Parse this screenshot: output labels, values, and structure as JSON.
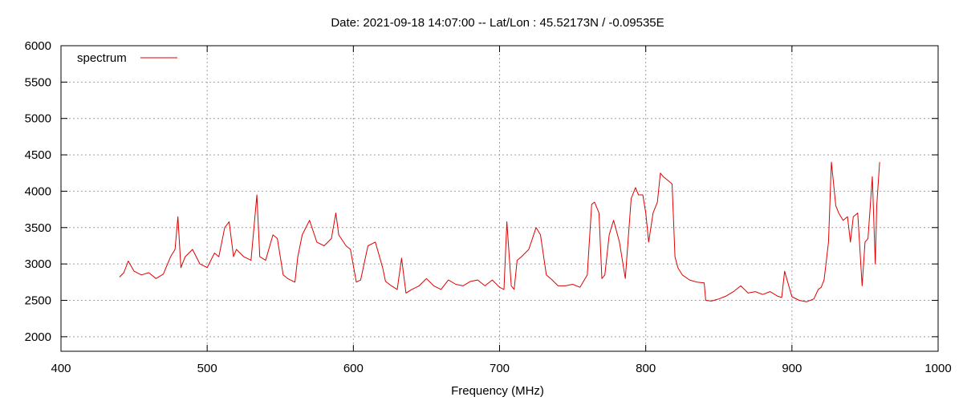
{
  "chart_data": {
    "type": "line",
    "title": "Date: 2021-09-18 14:07:00  --  Lat/Lon : 45.52173N / -0.09535E",
    "xlabel": "Frequency (MHz)",
    "ylabel": "",
    "xlim": [
      400,
      1000
    ],
    "ylim": [
      1800,
      6000
    ],
    "xticks": [
      400,
      500,
      600,
      700,
      800,
      900,
      1000
    ],
    "yticks": [
      2000,
      2500,
      3000,
      3500,
      4000,
      4500,
      5000,
      5500,
      6000
    ],
    "grid": true,
    "legend_position": "top-left",
    "colors": {
      "spectrum": "#e00000"
    },
    "series": [
      {
        "name": "spectrum",
        "x": [
          440,
          443,
          446,
          450,
          455,
          460,
          465,
          470,
          475,
          478,
          480,
          482,
          485,
          490,
          495,
          500,
          505,
          508,
          512,
          515,
          518,
          520,
          525,
          530,
          534,
          536,
          540,
          545,
          548,
          552,
          555,
          560,
          562,
          565,
          570,
          575,
          580,
          585,
          588,
          590,
          595,
          598,
          602,
          605,
          610,
          615,
          620,
          622,
          626,
          630,
          633,
          636,
          640,
          645,
          650,
          655,
          660,
          665,
          670,
          675,
          680,
          685,
          690,
          695,
          700,
          703,
          705,
          708,
          710,
          712,
          715,
          720,
          725,
          728,
          732,
          736,
          740,
          745,
          750,
          755,
          760,
          763,
          765,
          768,
          770,
          772,
          775,
          778,
          782,
          786,
          790,
          793,
          795,
          798,
          800,
          802,
          805,
          808,
          810,
          812,
          815,
          818,
          820,
          822,
          825,
          830,
          835,
          840,
          841,
          845,
          850,
          855,
          860,
          865,
          870,
          875,
          880,
          885,
          890,
          893,
          895,
          900,
          905,
          910,
          915,
          918,
          920,
          922,
          925,
          927,
          930,
          932,
          935,
          938,
          940,
          942,
          945,
          948,
          950,
          952,
          955,
          957,
          958,
          960
        ],
        "values": [
          2820,
          2880,
          3040,
          2900,
          2850,
          2880,
          2800,
          2860,
          3100,
          3200,
          3650,
          2950,
          3100,
          3200,
          3000,
          2950,
          3150,
          3100,
          3500,
          3580,
          3100,
          3200,
          3100,
          3050,
          3950,
          3100,
          3050,
          3400,
          3350,
          2850,
          2800,
          2750,
          3100,
          3400,
          3600,
          3300,
          3250,
          3350,
          3700,
          3400,
          3250,
          3200,
          2750,
          2780,
          3250,
          3300,
          2950,
          2760,
          2700,
          2650,
          3080,
          2600,
          2650,
          2700,
          2800,
          2700,
          2650,
          2780,
          2720,
          2700,
          2760,
          2780,
          2700,
          2780,
          2680,
          2650,
          3580,
          2700,
          2650,
          3050,
          3100,
          3200,
          3500,
          3400,
          2850,
          2780,
          2700,
          2700,
          2720,
          2680,
          2850,
          3820,
          3850,
          3700,
          2800,
          2850,
          3400,
          3600,
          3300,
          2800,
          3900,
          4050,
          3950,
          3950,
          3700,
          3300,
          3700,
          3850,
          4250,
          4200,
          4150,
          4100,
          3100,
          2950,
          2850,
          2780,
          2750,
          2740,
          2500,
          2490,
          2520,
          2560,
          2620,
          2700,
          2600,
          2620,
          2580,
          2620,
          2560,
          2540,
          2900,
          2550,
          2500,
          2480,
          2520,
          2650,
          2680,
          2780,
          3300,
          4400,
          3800,
          3700,
          3600,
          3650,
          3300,
          3650,
          3700,
          2700,
          3300,
          3350,
          4200,
          3000,
          3800,
          4400
        ]
      }
    ]
  }
}
